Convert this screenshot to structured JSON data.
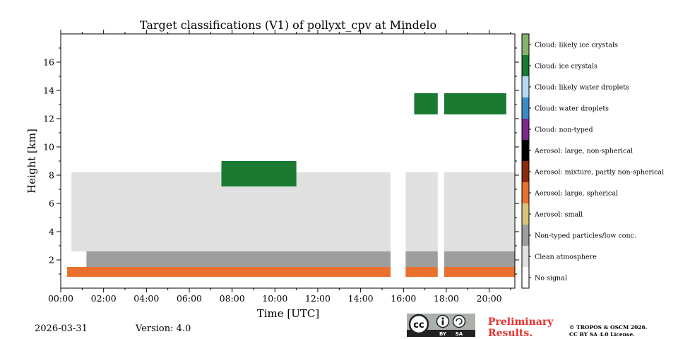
{
  "chart_data": {
    "type": "heatmap",
    "title": "Target classifications (V1) of pollyxt_cpv at Mindelo",
    "xlabel": "Time [UTC]",
    "ylabel": "Height [km]",
    "x_range_hours": [
      0,
      21.2
    ],
    "ylim_km": [
      0,
      18
    ],
    "x_ticks": [
      "00:00",
      "02:00",
      "04:00",
      "06:00",
      "08:00",
      "10:00",
      "12:00",
      "14:00",
      "16:00",
      "18:00",
      "20:00"
    ],
    "x_tick_values": [
      0,
      2,
      4,
      6,
      8,
      10,
      12,
      14,
      16,
      18,
      20
    ],
    "y_ticks": [
      "2",
      "4",
      "6",
      "8",
      "10",
      "12",
      "14",
      "16"
    ],
    "y_tick_values": [
      2,
      4,
      6,
      8,
      10,
      12,
      14,
      16
    ],
    "classes": [
      {
        "label": "No signal",
        "color": "#ffffff"
      },
      {
        "label": "Clean atmosphere",
        "color": "#e0e0e0"
      },
      {
        "label": "Non-typed particles/low conc.",
        "color": "#9e9e9e"
      },
      {
        "label": "Aerosol: small",
        "color": "#d9c27a"
      },
      {
        "label": "Aerosol: large, spherical",
        "color": "#e8712e"
      },
      {
        "label": "Aerosol: mixture, partly non-spherical",
        "color": "#8b2a0b"
      },
      {
        "label": "Aerosol: large, non-spherical",
        "color": "#000000"
      },
      {
        "label": "Cloud: non-typed",
        "color": "#7b2a8c"
      },
      {
        "label": "Cloud: water droplets",
        "color": "#3a8cc8"
      },
      {
        "label": "Cloud: likely water droplets",
        "color": "#b4dbf3"
      },
      {
        "label": "Cloud: ice crystals",
        "color": "#1a7a32"
      },
      {
        "label": "Cloud: likely ice crystals",
        "color": "#85b56a"
      }
    ],
    "features": [
      {
        "label": "Aerosol: large, spherical",
        "from_h": 0.3,
        "to_h": 21.2,
        "bottom_km": 0.8,
        "top_km": 1.5
      },
      {
        "label": "Non-typed particles/low conc.",
        "from_h": 1.2,
        "to_h": 21.2,
        "bottom_km": 1.5,
        "top_km": 2.6
      },
      {
        "label": "Clean atmosphere",
        "from_h": 0.5,
        "to_h": 21.2,
        "bottom_km": 2.6,
        "top_km": 8.2
      },
      {
        "label": "Cloud: ice crystals",
        "from_h": 7.5,
        "to_h": 11.0,
        "bottom_km": 7.2,
        "top_km": 9.0
      },
      {
        "label": "Cloud: ice crystals",
        "from_h": 16.5,
        "to_h": 20.8,
        "bottom_km": 12.3,
        "top_km": 13.8
      }
    ],
    "gaps_hours": [
      [
        15.4,
        16.1
      ],
      [
        17.6,
        17.9
      ]
    ]
  },
  "footer": {
    "date": "2026-03-31",
    "version": "Version: 4.0",
    "license_badge": {
      "cc": "cc",
      "by": "BY",
      "sa": "SA"
    },
    "preliminary_line1": "Preliminary",
    "preliminary_line2": "Results.",
    "copyright_line1": "© TROPOS & OSCM 2026.",
    "copyright_line2": "CC BY SA 4.0 License."
  }
}
